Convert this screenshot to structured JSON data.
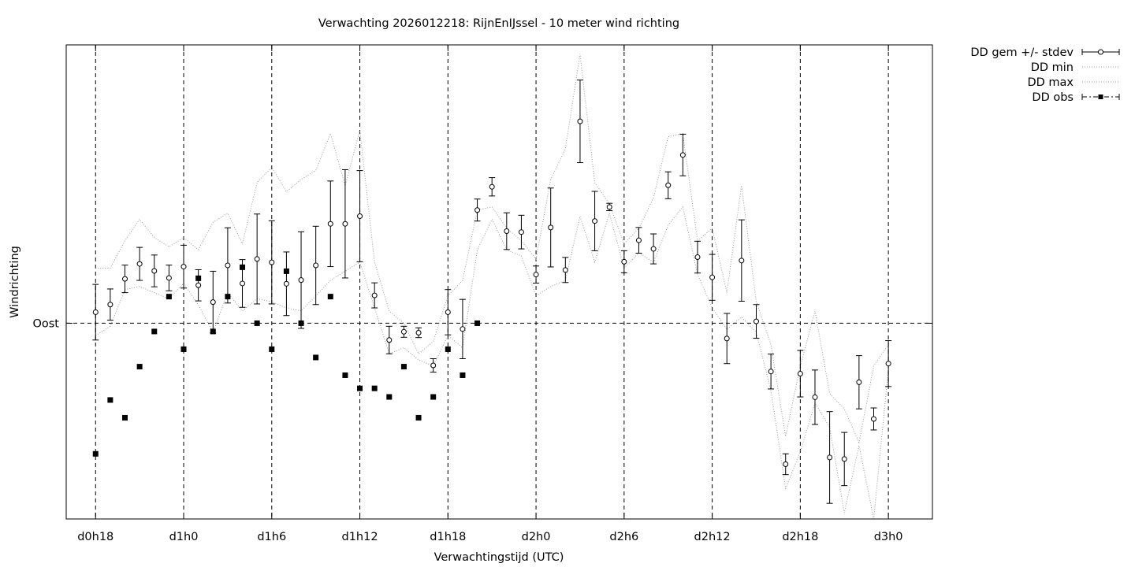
{
  "chart_data": {
    "type": "scatter",
    "title": "Verwachting 2026012218: RijnEnIJssel - 10 meter wind richting",
    "xlabel": "Verwachtingstijd (UTC)",
    "ylabel": "Windrichting",
    "x_unit": "hours since d0h0",
    "xlim": [
      16,
      75
    ],
    "ylim": [
      26,
      181
    ],
    "x_ticks": [
      {
        "x": 18,
        "label": "d0h18"
      },
      {
        "x": 24,
        "label": "d1h0"
      },
      {
        "x": 30,
        "label": "d1h6"
      },
      {
        "x": 36,
        "label": "d1h12"
      },
      {
        "x": 42,
        "label": "d1h18"
      },
      {
        "x": 48,
        "label": "d2h0"
      },
      {
        "x": 54,
        "label": "d2h6"
      },
      {
        "x": 60,
        "label": "d2h12"
      },
      {
        "x": 66,
        "label": "d2h18"
      },
      {
        "x": 72,
        "label": "d3h0"
      }
    ],
    "y_ticks": [
      {
        "y": 90,
        "label": "Oost"
      }
    ],
    "grid": true,
    "legend_position": "outside-top-right",
    "legend": [
      {
        "key": "mean",
        "label": "DD gem +/- stdev"
      },
      {
        "key": "min",
        "label": "DD min"
      },
      {
        "key": "max",
        "label": "DD max"
      },
      {
        "key": "obs",
        "label": "DD obs"
      }
    ],
    "series": [
      {
        "key": "mean",
        "x": [
          18,
          19,
          20,
          21,
          22,
          23,
          24,
          25,
          26,
          27,
          28,
          29,
          30,
          31,
          32,
          33,
          34,
          35,
          36,
          37,
          38,
          39,
          40,
          41,
          42,
          43,
          44,
          45,
          46,
          47,
          48,
          49,
          50,
          51,
          52,
          53,
          54,
          55,
          56,
          57,
          58,
          59,
          60,
          61,
          62,
          63,
          64,
          65,
          66,
          67,
          68,
          69,
          70,
          71,
          72
        ],
        "y": [
          93.6,
          96.1,
          104.5,
          109.4,
          107.1,
          104.8,
          108.5,
          102.4,
          96.9,
          108.9,
          103.0,
          111.0,
          109.9,
          102.9,
          104.1,
          108.9,
          122.5,
          122.5,
          125.0,
          99.1,
          84.5,
          87.2,
          86.9,
          76.2,
          93.6,
          88.1,
          127.0,
          134.6,
          120.1,
          119.8,
          105.9,
          121.3,
          107.4,
          156.0,
          123.4,
          128.0,
          110.1,
          117.1,
          114.3,
          135.1,
          145.0,
          111.6,
          105.0,
          85.0,
          110.5,
          90.6,
          74.2,
          43.9,
          73.5,
          65.8,
          46.1,
          45.6,
          70.7,
          58.7,
          76.8
        ],
        "err": [
          9.1,
          5.1,
          4.5,
          5.4,
          5.2,
          4.2,
          7.0,
          5.1,
          10.1,
          12.3,
          7.8,
          14.7,
          13.6,
          10.4,
          15.8,
          12.8,
          14.0,
          17.7,
          14.9,
          4.1,
          4.5,
          1.8,
          1.6,
          2.2,
          7.4,
          9.7,
          3.6,
          3.0,
          6.0,
          5.5,
          2.8,
          12.9,
          4.1,
          13.5,
          9.7,
          1.2,
          3.6,
          4.2,
          4.9,
          4.4,
          6.8,
          5.2,
          7.5,
          8.2,
          13.3,
          5.5,
          5.7,
          3.4,
          7.6,
          8.9,
          15.0,
          8.7,
          8.7,
          3.6,
          7.5
        ]
      },
      {
        "key": "min",
        "x": [
          18,
          19,
          20,
          21,
          22,
          23,
          24,
          25,
          26,
          27,
          28,
          29,
          30,
          31,
          32,
          33,
          34,
          35,
          36,
          37,
          38,
          39,
          40,
          41,
          42,
          43,
          44,
          45,
          46,
          47,
          48,
          49,
          50,
          51,
          52,
          53,
          54,
          55,
          56,
          57,
          58,
          59,
          60,
          61,
          62,
          63,
          64,
          65,
          66,
          67,
          68,
          69,
          70,
          71,
          72
        ],
        "y": [
          86.0,
          89.0,
          101.0,
          102.0,
          100.0,
          98.0,
          103.0,
          96.0,
          87.0,
          100.0,
          94.0,
          98.0,
          97.0,
          95.0,
          94.0,
          99.0,
          104.0,
          107.0,
          110.0,
          95.0,
          80.0,
          82.0,
          78.0,
          76.0,
          86.0,
          82.0,
          114.0,
          124.0,
          114.0,
          112.0,
          99.0,
          102.0,
          104.0,
          125.0,
          110.0,
          126.0,
          108.0,
          113.0,
          110.0,
          122.0,
          128.0,
          106.0,
          95.0,
          88.0,
          92.0,
          87.0,
          68.0,
          36.0,
          48.0,
          64.0,
          56.0,
          28.0,
          50.0,
          26.0,
          75.0
        ]
      },
      {
        "key": "max",
        "x": [
          18,
          19,
          20,
          21,
          22,
          23,
          24,
          25,
          26,
          27,
          28,
          29,
          30,
          31,
          32,
          33,
          34,
          35,
          36,
          37,
          38,
          39,
          40,
          41,
          42,
          43,
          44,
          45,
          46,
          47,
          48,
          49,
          50,
          51,
          52,
          53,
          54,
          55,
          56,
          57,
          58,
          59,
          60,
          61,
          62,
          63,
          64,
          65,
          66,
          67,
          68,
          69,
          70,
          71,
          72
        ],
        "y": [
          108.0,
          108.0,
          117.0,
          124.0,
          118.0,
          115.0,
          118.0,
          114.0,
          123.0,
          126.0,
          116.0,
          136.0,
          141.0,
          133.0,
          137.0,
          140.0,
          152.0,
          135.0,
          153.0,
          110.0,
          94.0,
          90.0,
          80.0,
          84.0,
          99.0,
          104.0,
          127.0,
          128.0,
          121.0,
          117.0,
          111.0,
          137.0,
          147.0,
          178.0,
          136.0,
          129.0,
          116.0,
          121.0,
          131.0,
          151.0,
          152.0,
          117.0,
          121.0,
          100.0,
          135.0,
          97.0,
          83.0,
          53.0,
          76.0,
          94.0,
          67.0,
          62.0,
          51.0,
          76.0,
          83.0
        ]
      },
      {
        "key": "obs",
        "x": [
          18,
          19,
          20,
          21,
          22,
          23,
          24,
          25,
          26,
          27,
          28,
          29,
          30,
          31,
          32,
          33,
          34,
          35,
          36,
          37,
          38,
          39,
          40,
          41,
          42,
          43,
          44
        ],
        "y": [
          47.3,
          64.9,
          59.1,
          75.8,
          87.3,
          98.7,
          81.5,
          104.7,
          87.3,
          98.7,
          108.3,
          90.0,
          81.5,
          107.0,
          90.0,
          78.8,
          98.7,
          73.0,
          68.7,
          68.7,
          65.9,
          75.8,
          59.1,
          65.9,
          81.5,
          73.0,
          90.0
        ]
      }
    ]
  }
}
